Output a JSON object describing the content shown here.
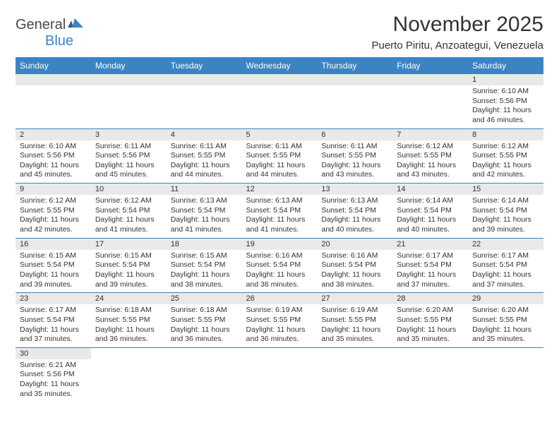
{
  "logo": {
    "part1": "General",
    "part2": "Blue"
  },
  "title": "November 2025",
  "location": "Puerto Piritu, Anzoategui, Venezuela",
  "colors": {
    "header_bg": "#3b84c4",
    "header_text": "#ffffff",
    "daynum_bg": "#e9e9e9",
    "border": "#3b84c4",
    "text": "#333333",
    "logo_gray": "#4a4a4a",
    "logo_blue": "#3b84c4"
  },
  "weekdays": [
    "Sunday",
    "Monday",
    "Tuesday",
    "Wednesday",
    "Thursday",
    "Friday",
    "Saturday"
  ],
  "weeks": [
    [
      null,
      null,
      null,
      null,
      null,
      null,
      {
        "n": "1",
        "sr": "Sunrise: 6:10 AM",
        "ss": "Sunset: 5:56 PM",
        "d1": "Daylight: 11 hours",
        "d2": "and 46 minutes."
      }
    ],
    [
      {
        "n": "2",
        "sr": "Sunrise: 6:10 AM",
        "ss": "Sunset: 5:56 PM",
        "d1": "Daylight: 11 hours",
        "d2": "and 45 minutes."
      },
      {
        "n": "3",
        "sr": "Sunrise: 6:11 AM",
        "ss": "Sunset: 5:56 PM",
        "d1": "Daylight: 11 hours",
        "d2": "and 45 minutes."
      },
      {
        "n": "4",
        "sr": "Sunrise: 6:11 AM",
        "ss": "Sunset: 5:55 PM",
        "d1": "Daylight: 11 hours",
        "d2": "and 44 minutes."
      },
      {
        "n": "5",
        "sr": "Sunrise: 6:11 AM",
        "ss": "Sunset: 5:55 PM",
        "d1": "Daylight: 11 hours",
        "d2": "and 44 minutes."
      },
      {
        "n": "6",
        "sr": "Sunrise: 6:11 AM",
        "ss": "Sunset: 5:55 PM",
        "d1": "Daylight: 11 hours",
        "d2": "and 43 minutes."
      },
      {
        "n": "7",
        "sr": "Sunrise: 6:12 AM",
        "ss": "Sunset: 5:55 PM",
        "d1": "Daylight: 11 hours",
        "d2": "and 43 minutes."
      },
      {
        "n": "8",
        "sr": "Sunrise: 6:12 AM",
        "ss": "Sunset: 5:55 PM",
        "d1": "Daylight: 11 hours",
        "d2": "and 42 minutes."
      }
    ],
    [
      {
        "n": "9",
        "sr": "Sunrise: 6:12 AM",
        "ss": "Sunset: 5:55 PM",
        "d1": "Daylight: 11 hours",
        "d2": "and 42 minutes."
      },
      {
        "n": "10",
        "sr": "Sunrise: 6:12 AM",
        "ss": "Sunset: 5:54 PM",
        "d1": "Daylight: 11 hours",
        "d2": "and 41 minutes."
      },
      {
        "n": "11",
        "sr": "Sunrise: 6:13 AM",
        "ss": "Sunset: 5:54 PM",
        "d1": "Daylight: 11 hours",
        "d2": "and 41 minutes."
      },
      {
        "n": "12",
        "sr": "Sunrise: 6:13 AM",
        "ss": "Sunset: 5:54 PM",
        "d1": "Daylight: 11 hours",
        "d2": "and 41 minutes."
      },
      {
        "n": "13",
        "sr": "Sunrise: 6:13 AM",
        "ss": "Sunset: 5:54 PM",
        "d1": "Daylight: 11 hours",
        "d2": "and 40 minutes."
      },
      {
        "n": "14",
        "sr": "Sunrise: 6:14 AM",
        "ss": "Sunset: 5:54 PM",
        "d1": "Daylight: 11 hours",
        "d2": "and 40 minutes."
      },
      {
        "n": "15",
        "sr": "Sunrise: 6:14 AM",
        "ss": "Sunset: 5:54 PM",
        "d1": "Daylight: 11 hours",
        "d2": "and 39 minutes."
      }
    ],
    [
      {
        "n": "16",
        "sr": "Sunrise: 6:15 AM",
        "ss": "Sunset: 5:54 PM",
        "d1": "Daylight: 11 hours",
        "d2": "and 39 minutes."
      },
      {
        "n": "17",
        "sr": "Sunrise: 6:15 AM",
        "ss": "Sunset: 5:54 PM",
        "d1": "Daylight: 11 hours",
        "d2": "and 39 minutes."
      },
      {
        "n": "18",
        "sr": "Sunrise: 6:15 AM",
        "ss": "Sunset: 5:54 PM",
        "d1": "Daylight: 11 hours",
        "d2": "and 38 minutes."
      },
      {
        "n": "19",
        "sr": "Sunrise: 6:16 AM",
        "ss": "Sunset: 5:54 PM",
        "d1": "Daylight: 11 hours",
        "d2": "and 38 minutes."
      },
      {
        "n": "20",
        "sr": "Sunrise: 6:16 AM",
        "ss": "Sunset: 5:54 PM",
        "d1": "Daylight: 11 hours",
        "d2": "and 38 minutes."
      },
      {
        "n": "21",
        "sr": "Sunrise: 6:17 AM",
        "ss": "Sunset: 5:54 PM",
        "d1": "Daylight: 11 hours",
        "d2": "and 37 minutes."
      },
      {
        "n": "22",
        "sr": "Sunrise: 6:17 AM",
        "ss": "Sunset: 5:54 PM",
        "d1": "Daylight: 11 hours",
        "d2": "and 37 minutes."
      }
    ],
    [
      {
        "n": "23",
        "sr": "Sunrise: 6:17 AM",
        "ss": "Sunset: 5:54 PM",
        "d1": "Daylight: 11 hours",
        "d2": "and 37 minutes."
      },
      {
        "n": "24",
        "sr": "Sunrise: 6:18 AM",
        "ss": "Sunset: 5:55 PM",
        "d1": "Daylight: 11 hours",
        "d2": "and 36 minutes."
      },
      {
        "n": "25",
        "sr": "Sunrise: 6:18 AM",
        "ss": "Sunset: 5:55 PM",
        "d1": "Daylight: 11 hours",
        "d2": "and 36 minutes."
      },
      {
        "n": "26",
        "sr": "Sunrise: 6:19 AM",
        "ss": "Sunset: 5:55 PM",
        "d1": "Daylight: 11 hours",
        "d2": "and 36 minutes."
      },
      {
        "n": "27",
        "sr": "Sunrise: 6:19 AM",
        "ss": "Sunset: 5:55 PM",
        "d1": "Daylight: 11 hours",
        "d2": "and 35 minutes."
      },
      {
        "n": "28",
        "sr": "Sunrise: 6:20 AM",
        "ss": "Sunset: 5:55 PM",
        "d1": "Daylight: 11 hours",
        "d2": "and 35 minutes."
      },
      {
        "n": "29",
        "sr": "Sunrise: 6:20 AM",
        "ss": "Sunset: 5:55 PM",
        "d1": "Daylight: 11 hours",
        "d2": "and 35 minutes."
      }
    ],
    [
      {
        "n": "30",
        "sr": "Sunrise: 6:21 AM",
        "ss": "Sunset: 5:56 PM",
        "d1": "Daylight: 11 hours",
        "d2": "and 35 minutes."
      },
      null,
      null,
      null,
      null,
      null,
      null
    ]
  ]
}
